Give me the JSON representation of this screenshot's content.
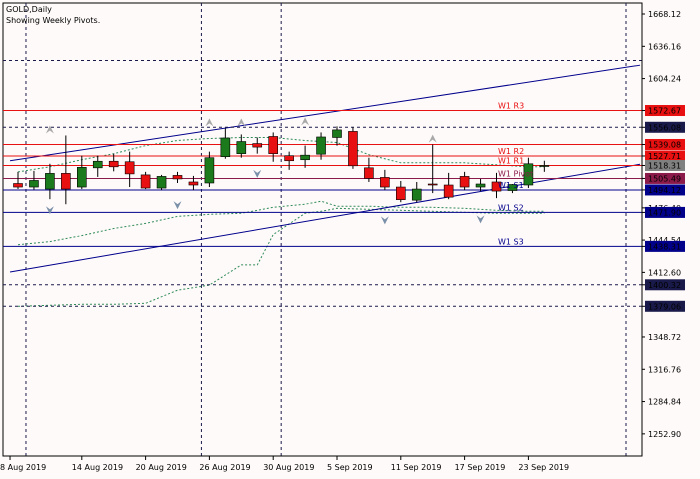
{
  "header": {
    "symbol_line": "GOLD,Daily",
    "subtitle": "Showing Weekly Pivots."
  },
  "colors": {
    "background": "#fffafa",
    "bull_candle": "#1b7a1b",
    "bear_candle": "#e81010",
    "resistance": "#e81010",
    "support": "#00008b",
    "pivot_marker": "#8b1a4a",
    "current_price": "#808080",
    "dashed_hline": "#1a1a4a",
    "channel": "#00008b",
    "envelope": "#2e8b57"
  },
  "chart_data": {
    "type": "candlestick",
    "ylim": [
      1231.0,
      1679.0
    ],
    "y_ticks": [
      1668.12,
      1636.16,
      1604.24,
      1572.67,
      1556.08,
      1539.08,
      1527.71,
      1518.31,
      1505.49,
      1494.12,
      1476.4,
      1471.9,
      1444.54,
      1438.31,
      1412.6,
      1400.32,
      1379.06,
      1348.72,
      1316.76,
      1284.84,
      1252.9
    ],
    "x_ticks": [
      "8 Aug 2019",
      "14 Aug 2019",
      "20 Aug 2019",
      "26 Aug 2019",
      "30 Aug 2019",
      "5 Sep 2019",
      "11 Sep 2019",
      "17 Sep 2019",
      "23 Sep 2019"
    ],
    "candles": [
      {
        "o": 1500.5,
        "h": 1512.0,
        "l": 1495.0,
        "c": 1497.0
      },
      {
        "o": 1497.0,
        "h": 1513.0,
        "l": 1494.5,
        "c": 1503.5
      },
      {
        "o": 1495.0,
        "h": 1520.0,
        "l": 1485.0,
        "c": 1510.5
      },
      {
        "o": 1510.5,
        "h": 1548.0,
        "l": 1480.0,
        "c": 1495.0
      },
      {
        "o": 1497.0,
        "h": 1528.0,
        "l": 1495.0,
        "c": 1516.5
      },
      {
        "o": 1516.0,
        "h": 1528.0,
        "l": 1507.0,
        "c": 1522.5
      },
      {
        "o": 1522.5,
        "h": 1530.0,
        "l": 1512.5,
        "c": 1517.0
      },
      {
        "o": 1522.0,
        "h": 1532.0,
        "l": 1497.0,
        "c": 1510.0
      },
      {
        "o": 1509.0,
        "h": 1512.0,
        "l": 1495.0,
        "c": 1496.0
      },
      {
        "o": 1496.0,
        "h": 1509.0,
        "l": 1494.0,
        "c": 1507.5
      },
      {
        "o": 1508.5,
        "h": 1512.0,
        "l": 1501.0,
        "c": 1505.0
      },
      {
        "o": 1502.0,
        "h": 1508.0,
        "l": 1494.0,
        "c": 1499.0
      },
      {
        "o": 1501.0,
        "h": 1532.0,
        "l": 1497.0,
        "c": 1526.0
      },
      {
        "o": 1527.0,
        "h": 1555.0,
        "l": 1525.0,
        "c": 1545.5
      },
      {
        "o": 1530.0,
        "h": 1549.0,
        "l": 1526.0,
        "c": 1542.0
      },
      {
        "o": 1540.0,
        "h": 1546.0,
        "l": 1530.0,
        "c": 1536.5
      },
      {
        "o": 1547.0,
        "h": 1551.0,
        "l": 1522.0,
        "c": 1530.0
      },
      {
        "o": 1528.0,
        "h": 1532.0,
        "l": 1514.0,
        "c": 1523.0
      },
      {
        "o": 1524.0,
        "h": 1538.0,
        "l": 1516.0,
        "c": 1528.5
      },
      {
        "o": 1529.5,
        "h": 1551.0,
        "l": 1524.0,
        "c": 1546.5
      },
      {
        "o": 1546.0,
        "h": 1557.0,
        "l": 1538.0,
        "c": 1553.5
      },
      {
        "o": 1552.0,
        "h": 1556.0,
        "l": 1515.0,
        "c": 1518.0
      },
      {
        "o": 1516.0,
        "h": 1526.0,
        "l": 1502.0,
        "c": 1505.5
      },
      {
        "o": 1506.5,
        "h": 1514.0,
        "l": 1494.0,
        "c": 1497.0
      },
      {
        "o": 1497.0,
        "h": 1503.0,
        "l": 1482.0,
        "c": 1484.5
      },
      {
        "o": 1484.0,
        "h": 1502.0,
        "l": 1482.0,
        "c": 1495.0
      },
      {
        "o": 1500.0,
        "h": 1539.0,
        "l": 1491.0,
        "c": 1499.0
      },
      {
        "o": 1499.0,
        "h": 1511.0,
        "l": 1485.0,
        "c": 1487.0
      },
      {
        "o": 1507.5,
        "h": 1512.0,
        "l": 1494.0,
        "c": 1497.0
      },
      {
        "o": 1497.0,
        "h": 1505.0,
        "l": 1493.0,
        "c": 1500.0
      },
      {
        "o": 1502.0,
        "h": 1511.0,
        "l": 1486.0,
        "c": 1493.0
      },
      {
        "o": 1493.5,
        "h": 1500.0,
        "l": 1491.0,
        "c": 1499.5
      },
      {
        "o": 1499.0,
        "h": 1526.0,
        "l": 1496.0,
        "c": 1520.0
      },
      {
        "o": 1518.0,
        "h": 1523.0,
        "l": 1512.0,
        "c": 1518.3
      }
    ],
    "pivot_lines": [
      {
        "name": "W1 R3",
        "value": 1572.67,
        "kind": "resistance",
        "axis_label": "1572.67"
      },
      {
        "name": "W1 R2",
        "value": 1527.71,
        "kind": "resistance",
        "axis_label": "1527.71"
      },
      {
        "name": "W1 R1",
        "value": 1518.31,
        "kind": "resistance",
        "axis_label": ""
      },
      {
        "name": "W1 Pivot",
        "value": 1505.49,
        "kind": "pivot",
        "axis_label": "1505.49"
      },
      {
        "name": "W1 S1",
        "value": 1494.12,
        "kind": "support",
        "axis_label": "1494.12"
      },
      {
        "name": "W1 S2",
        "value": 1471.9,
        "kind": "support",
        "axis_label": "1471.90"
      },
      {
        "name": "W1 S3",
        "value": 1438.31,
        "kind": "support",
        "axis_label": "1438.31"
      }
    ],
    "extra_hlines": [
      {
        "value": 1539.08,
        "kind": "resistance",
        "style": "solid",
        "axis_label": "1539.08"
      },
      {
        "value": 1622.17,
        "kind": "dashed",
        "style": "dashed",
        "axis_label": "1622.17"
      },
      {
        "value": 1556.08,
        "kind": "dashed",
        "style": "dashed",
        "axis_label": "1556.08"
      },
      {
        "value": 1400.32,
        "kind": "dashed",
        "style": "dashed",
        "axis_label": "1400.32"
      },
      {
        "value": 1379.06,
        "kind": "dashed",
        "style": "dashed",
        "axis_label": "1379.06"
      }
    ],
    "current_price": {
      "value": 1518.31,
      "label": "1518.31"
    },
    "channel_lines": [
      {
        "from": {
          "bar": -0.5,
          "price": 1523.0
        },
        "to": {
          "bar": 39.0,
          "price": 1617.5
        }
      },
      {
        "from": {
          "bar": -0.5,
          "price": 1413.0
        },
        "to": {
          "bar": 39.0,
          "price": 1519.5
        }
      }
    ],
    "envelope_upper": [
      [
        0,
        1512
      ],
      [
        2,
        1517
      ],
      [
        4,
        1524
      ],
      [
        6,
        1530
      ],
      [
        8,
        1538
      ],
      [
        10,
        1543
      ],
      [
        12,
        1545
      ],
      [
        14,
        1546
      ],
      [
        16,
        1546
      ],
      [
        18,
        1543
      ],
      [
        20,
        1541
      ],
      [
        22,
        1529
      ],
      [
        24,
        1521
      ],
      [
        26,
        1521
      ],
      [
        28,
        1521
      ],
      [
        30,
        1519
      ],
      [
        32,
        1517
      ],
      [
        33,
        1517
      ]
    ],
    "envelope_lower": [
      [
        0,
        1440
      ],
      [
        2,
        1443
      ],
      [
        4,
        1449
      ],
      [
        6,
        1456
      ],
      [
        8,
        1461
      ],
      [
        10,
        1468
      ],
      [
        12,
        1470
      ],
      [
        14,
        1471
      ],
      [
        16,
        1477
      ],
      [
        18,
        1480
      ],
      [
        19,
        1483
      ],
      [
        20,
        1478
      ],
      [
        22,
        1478
      ],
      [
        24,
        1477
      ],
      [
        26,
        1477
      ],
      [
        28,
        1476
      ],
      [
        30,
        1474
      ],
      [
        32,
        1473
      ],
      [
        33,
        1473
      ]
    ],
    "envelope_outer_lower": [
      [
        0,
        1379
      ],
      [
        2,
        1380
      ],
      [
        4,
        1381
      ],
      [
        6,
        1381
      ],
      [
        8,
        1382
      ],
      [
        10,
        1395
      ],
      [
        12,
        1400
      ],
      [
        14,
        1420
      ],
      [
        15,
        1420
      ],
      [
        16,
        1450
      ],
      [
        18,
        1471
      ],
      [
        19,
        1473
      ],
      [
        20,
        1476
      ],
      [
        22,
        1475
      ],
      [
        24,
        1474
      ],
      [
        26,
        1473
      ],
      [
        28,
        1472
      ],
      [
        30,
        1471
      ],
      [
        32,
        1471
      ],
      [
        33,
        1471
      ]
    ],
    "vlines": [
      0.5,
      11.5,
      16.5
    ],
    "fractals_up": [
      [
        2,
        1548
      ],
      [
        12,
        1555
      ],
      [
        14,
        1555
      ],
      [
        18,
        1556
      ],
      [
        26,
        1539
      ]
    ],
    "fractals_down": [
      [
        2,
        1480
      ],
      [
        10,
        1485
      ],
      [
        15,
        1516
      ],
      [
        23,
        1470
      ],
      [
        29,
        1471
      ]
    ]
  }
}
